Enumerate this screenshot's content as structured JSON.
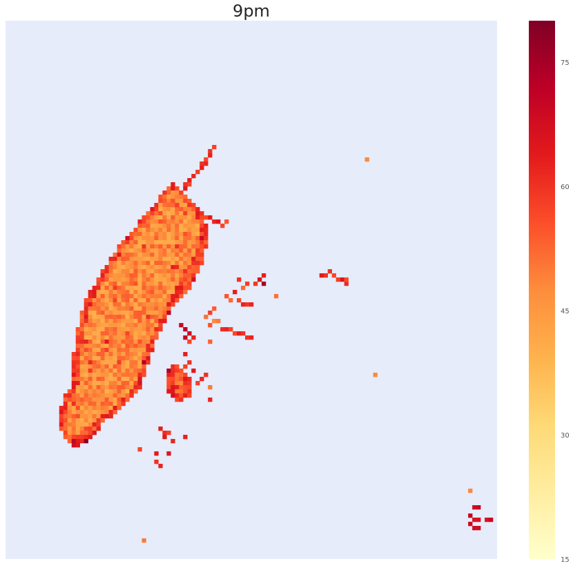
{
  "chart_data": {
    "type": "heatmap",
    "title": "9pm",
    "xlabel": "",
    "ylabel": "",
    "grid": false,
    "background_color": "#e6ecfa",
    "colormap": "YlOrRd",
    "colorbar": {
      "range": [
        15,
        80
      ],
      "ticks": [
        "15",
        "30",
        "45",
        "60",
        "75"
      ],
      "tick_values": [
        15,
        30,
        45,
        60,
        75
      ],
      "colors": [
        "#ffffcc",
        "#ffeda0",
        "#fed976",
        "#feb24c",
        "#fd8d3c",
        "#fc4e2a",
        "#e31a1c",
        "#bd0026",
        "#800026"
      ],
      "placement": "right"
    },
    "cell_grid": {
      "columns": 119,
      "rows": 130
    },
    "cells": [
      [
        50,
        30,
        58
      ],
      [
        49,
        31,
        60
      ],
      [
        49,
        32,
        63
      ],
      [
        48,
        33,
        57
      ],
      [
        48,
        34,
        62
      ],
      [
        47,
        34,
        60
      ],
      [
        47,
        35,
        63
      ],
      [
        46,
        36,
        58
      ],
      [
        45,
        37,
        62
      ],
      [
        44,
        38,
        63
      ],
      [
        44,
        39,
        57
      ],
      [
        43,
        39,
        60
      ],
      [
        43,
        40,
        64
      ],
      [
        42,
        41,
        58
      ],
      [
        41,
        42,
        49
      ],
      [
        40,
        43,
        55
      ],
      [
        40,
        44,
        52
      ],
      [
        41,
        44,
        58
      ],
      [
        45,
        44,
        57
      ],
      [
        46,
        45,
        62
      ],
      [
        47,
        46,
        60
      ],
      [
        48,
        47,
        56
      ],
      [
        49,
        47,
        64
      ],
      [
        50,
        48,
        62
      ],
      [
        51,
        48,
        65
      ],
      [
        52,
        49,
        57
      ],
      [
        53,
        48,
        55
      ],
      [
        87,
        33,
        48
      ],
      [
        76,
        61,
        64
      ],
      [
        78,
        60,
        60
      ],
      [
        79,
        61,
        57
      ],
      [
        81,
        62,
        65
      ],
      [
        80,
        62,
        58
      ],
      [
        82,
        63,
        61
      ],
      [
        77,
        61,
        60
      ],
      [
        82,
        62,
        56
      ],
      [
        62,
        61,
        63
      ],
      [
        61,
        62,
        66
      ],
      [
        60,
        63,
        59
      ],
      [
        58,
        63,
        58
      ],
      [
        62,
        63,
        75
      ],
      [
        56,
        62,
        60
      ],
      [
        57,
        64,
        52
      ],
      [
        55,
        65,
        63
      ],
      [
        53,
        66,
        55
      ],
      [
        54,
        67,
        52
      ],
      [
        56,
        67,
        57
      ],
      [
        58,
        68,
        59
      ],
      [
        59,
        68,
        62
      ],
      [
        57,
        68,
        62
      ],
      [
        50,
        69,
        54
      ],
      [
        49,
        70,
        58
      ],
      [
        48,
        71,
        51
      ],
      [
        50,
        72,
        48
      ],
      [
        51,
        72,
        50
      ],
      [
        49,
        73,
        55
      ],
      [
        52,
        74,
        61
      ],
      [
        53,
        74,
        62
      ],
      [
        54,
        74,
        57
      ],
      [
        55,
        75,
        57
      ],
      [
        56,
        75,
        63
      ],
      [
        57,
        75,
        60
      ],
      [
        58,
        76,
        60
      ],
      [
        59,
        76,
        62
      ],
      [
        49,
        77,
        53
      ],
      [
        42,
        73,
        69
      ],
      [
        43,
        74,
        72
      ],
      [
        44,
        75,
        68
      ],
      [
        43,
        76,
        70
      ],
      [
        44,
        77,
        57
      ],
      [
        45,
        76,
        62
      ],
      [
        65,
        66,
        51
      ],
      [
        89,
        85,
        48
      ],
      [
        43,
        80,
        63
      ],
      [
        44,
        82,
        60
      ],
      [
        43,
        83,
        58
      ],
      [
        45,
        84,
        64
      ],
      [
        42,
        84,
        55
      ],
      [
        48,
        85,
        60
      ],
      [
        47,
        86,
        62
      ],
      [
        46,
        87,
        58
      ],
      [
        49,
        88,
        50
      ],
      [
        49,
        91,
        62
      ],
      [
        43,
        100,
        63
      ],
      [
        37,
        98,
        63
      ],
      [
        38,
        99,
        61
      ],
      [
        38,
        100,
        64
      ],
      [
        39,
        99,
        58
      ],
      [
        40,
        101,
        62
      ],
      [
        32,
        103,
        57
      ],
      [
        36,
        104,
        64
      ],
      [
        39,
        104,
        65
      ],
      [
        36,
        106,
        60
      ],
      [
        37,
        107,
        62
      ],
      [
        112,
        113,
        48
      ],
      [
        113,
        117,
        68
      ],
      [
        114,
        117,
        70
      ],
      [
        112,
        119,
        70
      ],
      [
        113,
        120,
        66
      ],
      [
        114,
        120,
        66
      ],
      [
        116,
        120,
        66
      ],
      [
        117,
        120,
        70
      ],
      [
        112,
        121,
        69
      ],
      [
        113,
        122,
        68
      ],
      [
        114,
        122,
        68
      ],
      [
        33,
        125,
        50
      ]
    ]
  }
}
